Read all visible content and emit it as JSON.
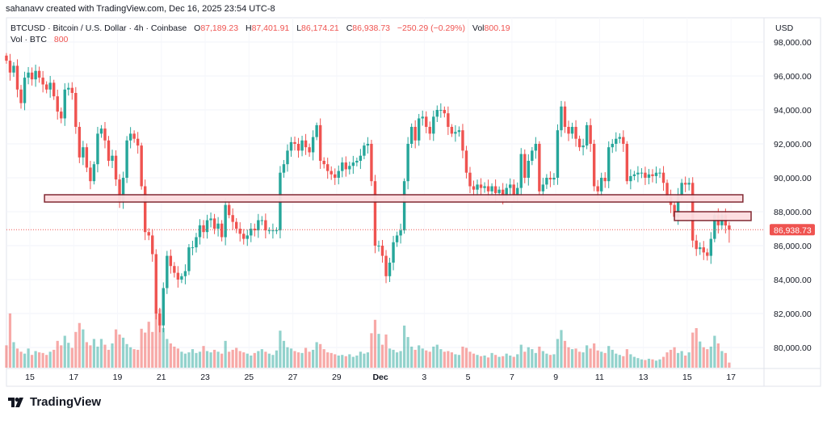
{
  "credit": "sahanavv created with TradingView.com, Dec 16, 2025 23:54 UTC-8",
  "legend": {
    "symbol": "BTCUSD · Bitcoin / U.S. Dollar · 4h · Coinbase",
    "open_label": "O",
    "open": "87,189.23",
    "high_label": "H",
    "high": "87,401.91",
    "low_label": "L",
    "low": "86,174.21",
    "close_label": "C",
    "close": "86,938.73",
    "change": "−250.29 (−0.29%)",
    "vol_label": "Vol",
    "vol": "800.19",
    "volume_indicator": "Vol · BTC",
    "volume_value": "800"
  },
  "logo_text": "TradingView",
  "colors": {
    "up": "#26a69a",
    "down": "#ef5350",
    "zone_fill": "#fddde0",
    "zone_border": "#7b1e28",
    "grid": "#f0f3fa"
  },
  "chart_data": {
    "type": "candlestick",
    "symbol": "BTCUSD",
    "interval": "4h",
    "currency": "USD",
    "ylim": [
      79000,
      98500
    ],
    "price_ticks": [
      "98,000.00",
      "96,000.00",
      "94,000.00",
      "92,000.00",
      "90,000.00",
      "88,000.00",
      "86,000.00",
      "84,000.00",
      "82,000.00",
      "80,000.00"
    ],
    "price_tick_values": [
      98000,
      96000,
      94000,
      92000,
      90000,
      88000,
      86000,
      84000,
      82000,
      80000
    ],
    "time_ticks": [
      "15",
      "17",
      "19",
      "21",
      "23",
      "25",
      "27",
      "29",
      "Dec",
      "3",
      "5",
      "7",
      "9",
      "11",
      "13",
      "15",
      "17"
    ],
    "time_tick_dates": [
      "2025-11-15",
      "2025-11-17",
      "2025-11-19",
      "2025-11-21",
      "2025-11-23",
      "2025-11-25",
      "2025-11-27",
      "2025-11-29",
      "2025-12-01",
      "2025-12-03",
      "2025-12-05",
      "2025-12-07",
      "2025-12-09",
      "2025-12-11",
      "2025-12-13",
      "2025-12-15",
      "2025-12-17"
    ],
    "last_price": 86938.73,
    "last_price_label": "86,938.73",
    "last_candle": {
      "open": 87189.23,
      "high": 87401.91,
      "low": 86174.21,
      "close": 86938.73
    },
    "closes_thousands": [
      96.9,
      96.2,
      96.6,
      95.2,
      94.4,
      95.9,
      96.2,
      95.8,
      96.3,
      95.9,
      95.5,
      95.2,
      95.6,
      94.8,
      93.9,
      93.5,
      95.2,
      95.3,
      95.0,
      93.0,
      91.2,
      91.8,
      90.6,
      89.8,
      90.8,
      92.6,
      92.9,
      92.2,
      91.0,
      91.3,
      89.9,
      88.6,
      90.0,
      92.2,
      92.6,
      92.3,
      91.9,
      89.5,
      86.8,
      86.6,
      85.5,
      82.0,
      81.3,
      83.5,
      85.4,
      84.8,
      84.4,
      84.0,
      84.2,
      84.5,
      85.9,
      85.9,
      86.5,
      87.2,
      86.8,
      87.5,
      87.6,
      87.0,
      87.3,
      86.5,
      88.4,
      87.8,
      87.4,
      87.0,
      86.7,
      86.4,
      86.6,
      87.0,
      86.9,
      87.5,
      87.5,
      86.9,
      86.9,
      86.9,
      86.9,
      90.3,
      90.8,
      91.6,
      92.1,
      92.0,
      91.6,
      92.2,
      91.8,
      91.5,
      92.4,
      93.1,
      91.0,
      90.8,
      90.4,
      90.2,
      90.0,
      90.4,
      90.9,
      90.5,
      90.7,
      90.9,
      91.0,
      91.3,
      91.9,
      92.0,
      89.8,
      86.0,
      86.0,
      85.4,
      84.2,
      85.0,
      86.2,
      86.6,
      86.9,
      89.8,
      92.0,
      93.0,
      92.2,
      93.5,
      93.6,
      93.0,
      92.6,
      93.6,
      94.0,
      94.0,
      93.8,
      93.0,
      92.6,
      92.7,
      92.8,
      91.6,
      90.3,
      89.5,
      89.3,
      89.6,
      89.4,
      89.5,
      89.2,
      89.5,
      89.1,
      89.3,
      88.9,
      89.4,
      89.6,
      89.0,
      89.4,
      91.4,
      90.0,
      91.0,
      91.6,
      92.0,
      89.2,
      89.6,
      90.0,
      89.9,
      90.0,
      92.8,
      94.2,
      93.0,
      92.6,
      93.0,
      92.3,
      91.8,
      91.9,
      93.1,
      92.0,
      89.5,
      89.2,
      90.0,
      89.8,
      91.8,
      92.0,
      92.3,
      92.4,
      92.0,
      89.8,
      90.1,
      90.2,
      90.3,
      90.3,
      90.0,
      90.2,
      90.1,
      90.3,
      90.3,
      89.7,
      88.9,
      88.4,
      87.7,
      89.0,
      89.7,
      89.6,
      89.7,
      86.3,
      85.8,
      85.9,
      85.6,
      85.4,
      86.4,
      87.8,
      87.2,
      87.8,
      87.19,
      86.93873
    ],
    "volumes_btc": [
      3500,
      8500,
      4000,
      3000,
      2500,
      2200,
      3000,
      2000,
      2600,
      2400,
      2300,
      2000,
      2500,
      2800,
      4200,
      3500,
      5000,
      3900,
      3100,
      5600,
      7000,
      6000,
      4000,
      3500,
      4500,
      3300,
      4500,
      3600,
      2800,
      3800,
      6000,
      5200,
      4700,
      3700,
      3200,
      2900,
      2800,
      6100,
      5500,
      7200,
      5600,
      9000,
      9200,
      6200,
      4500,
      3800,
      3300,
      3000,
      2500,
      2200,
      2400,
      2900,
      2300,
      2500,
      3400,
      2600,
      2400,
      2800,
      2500,
      2200,
      4200,
      2500,
      2800,
      3100,
      2600,
      2400,
      2200,
      1900,
      2300,
      2600,
      2900,
      2500,
      2200,
      2000,
      2700,
      5800,
      4200,
      3200,
      3000,
      2600,
      2400,
      2300,
      3100,
      2500,
      2800,
      4000,
      3700,
      2900,
      2400,
      2300,
      2100,
      1900,
      2000,
      1800,
      2100,
      1700,
      1900,
      2500,
      2200,
      2400,
      5400,
      7500,
      5300,
      3600,
      5200,
      3000,
      2800,
      2400,
      2600,
      6600,
      4800,
      3300,
      2800,
      3500,
      3000,
      2700,
      2500,
      3300,
      3600,
      2900,
      2500,
      2600,
      2400,
      2100,
      2000,
      3300,
      3100,
      2500,
      2200,
      2000,
      1800,
      1900,
      1600,
      2300,
      2000,
      1700,
      1800,
      2200,
      1900,
      1700,
      2100,
      3600,
      2500,
      3200,
      2900,
      2300,
      3300,
      2600,
      2200,
      2000,
      2100,
      4500,
      5900,
      4200,
      3200,
      2900,
      3000,
      2500,
      2400,
      3500,
      3000,
      3800,
      2700,
      2500,
      2300,
      3400,
      2800,
      2200,
      2000,
      1800,
      2900,
      2100,
      1700,
      1500,
      1300,
      1200,
      1400,
      1300,
      1100,
      1300,
      1700,
      2400,
      2800,
      3200,
      2300,
      2600,
      1900,
      2400,
      5500,
      6200,
      4100,
      3200,
      2900,
      3300,
      5000,
      3800,
      2600,
      2300,
      800
    ],
    "zones": [
      {
        "name": "support-zone",
        "from": "2025-11-15 16:00",
        "to": "2025-12-17 13:00",
        "price_low": 88570,
        "price_high": 89000
      },
      {
        "name": "resistance-zone",
        "from": "2025-12-14 10:00",
        "to": "2025-12-17 22:00",
        "price_low": 87480,
        "price_high": 88000
      }
    ],
    "grid": true
  }
}
